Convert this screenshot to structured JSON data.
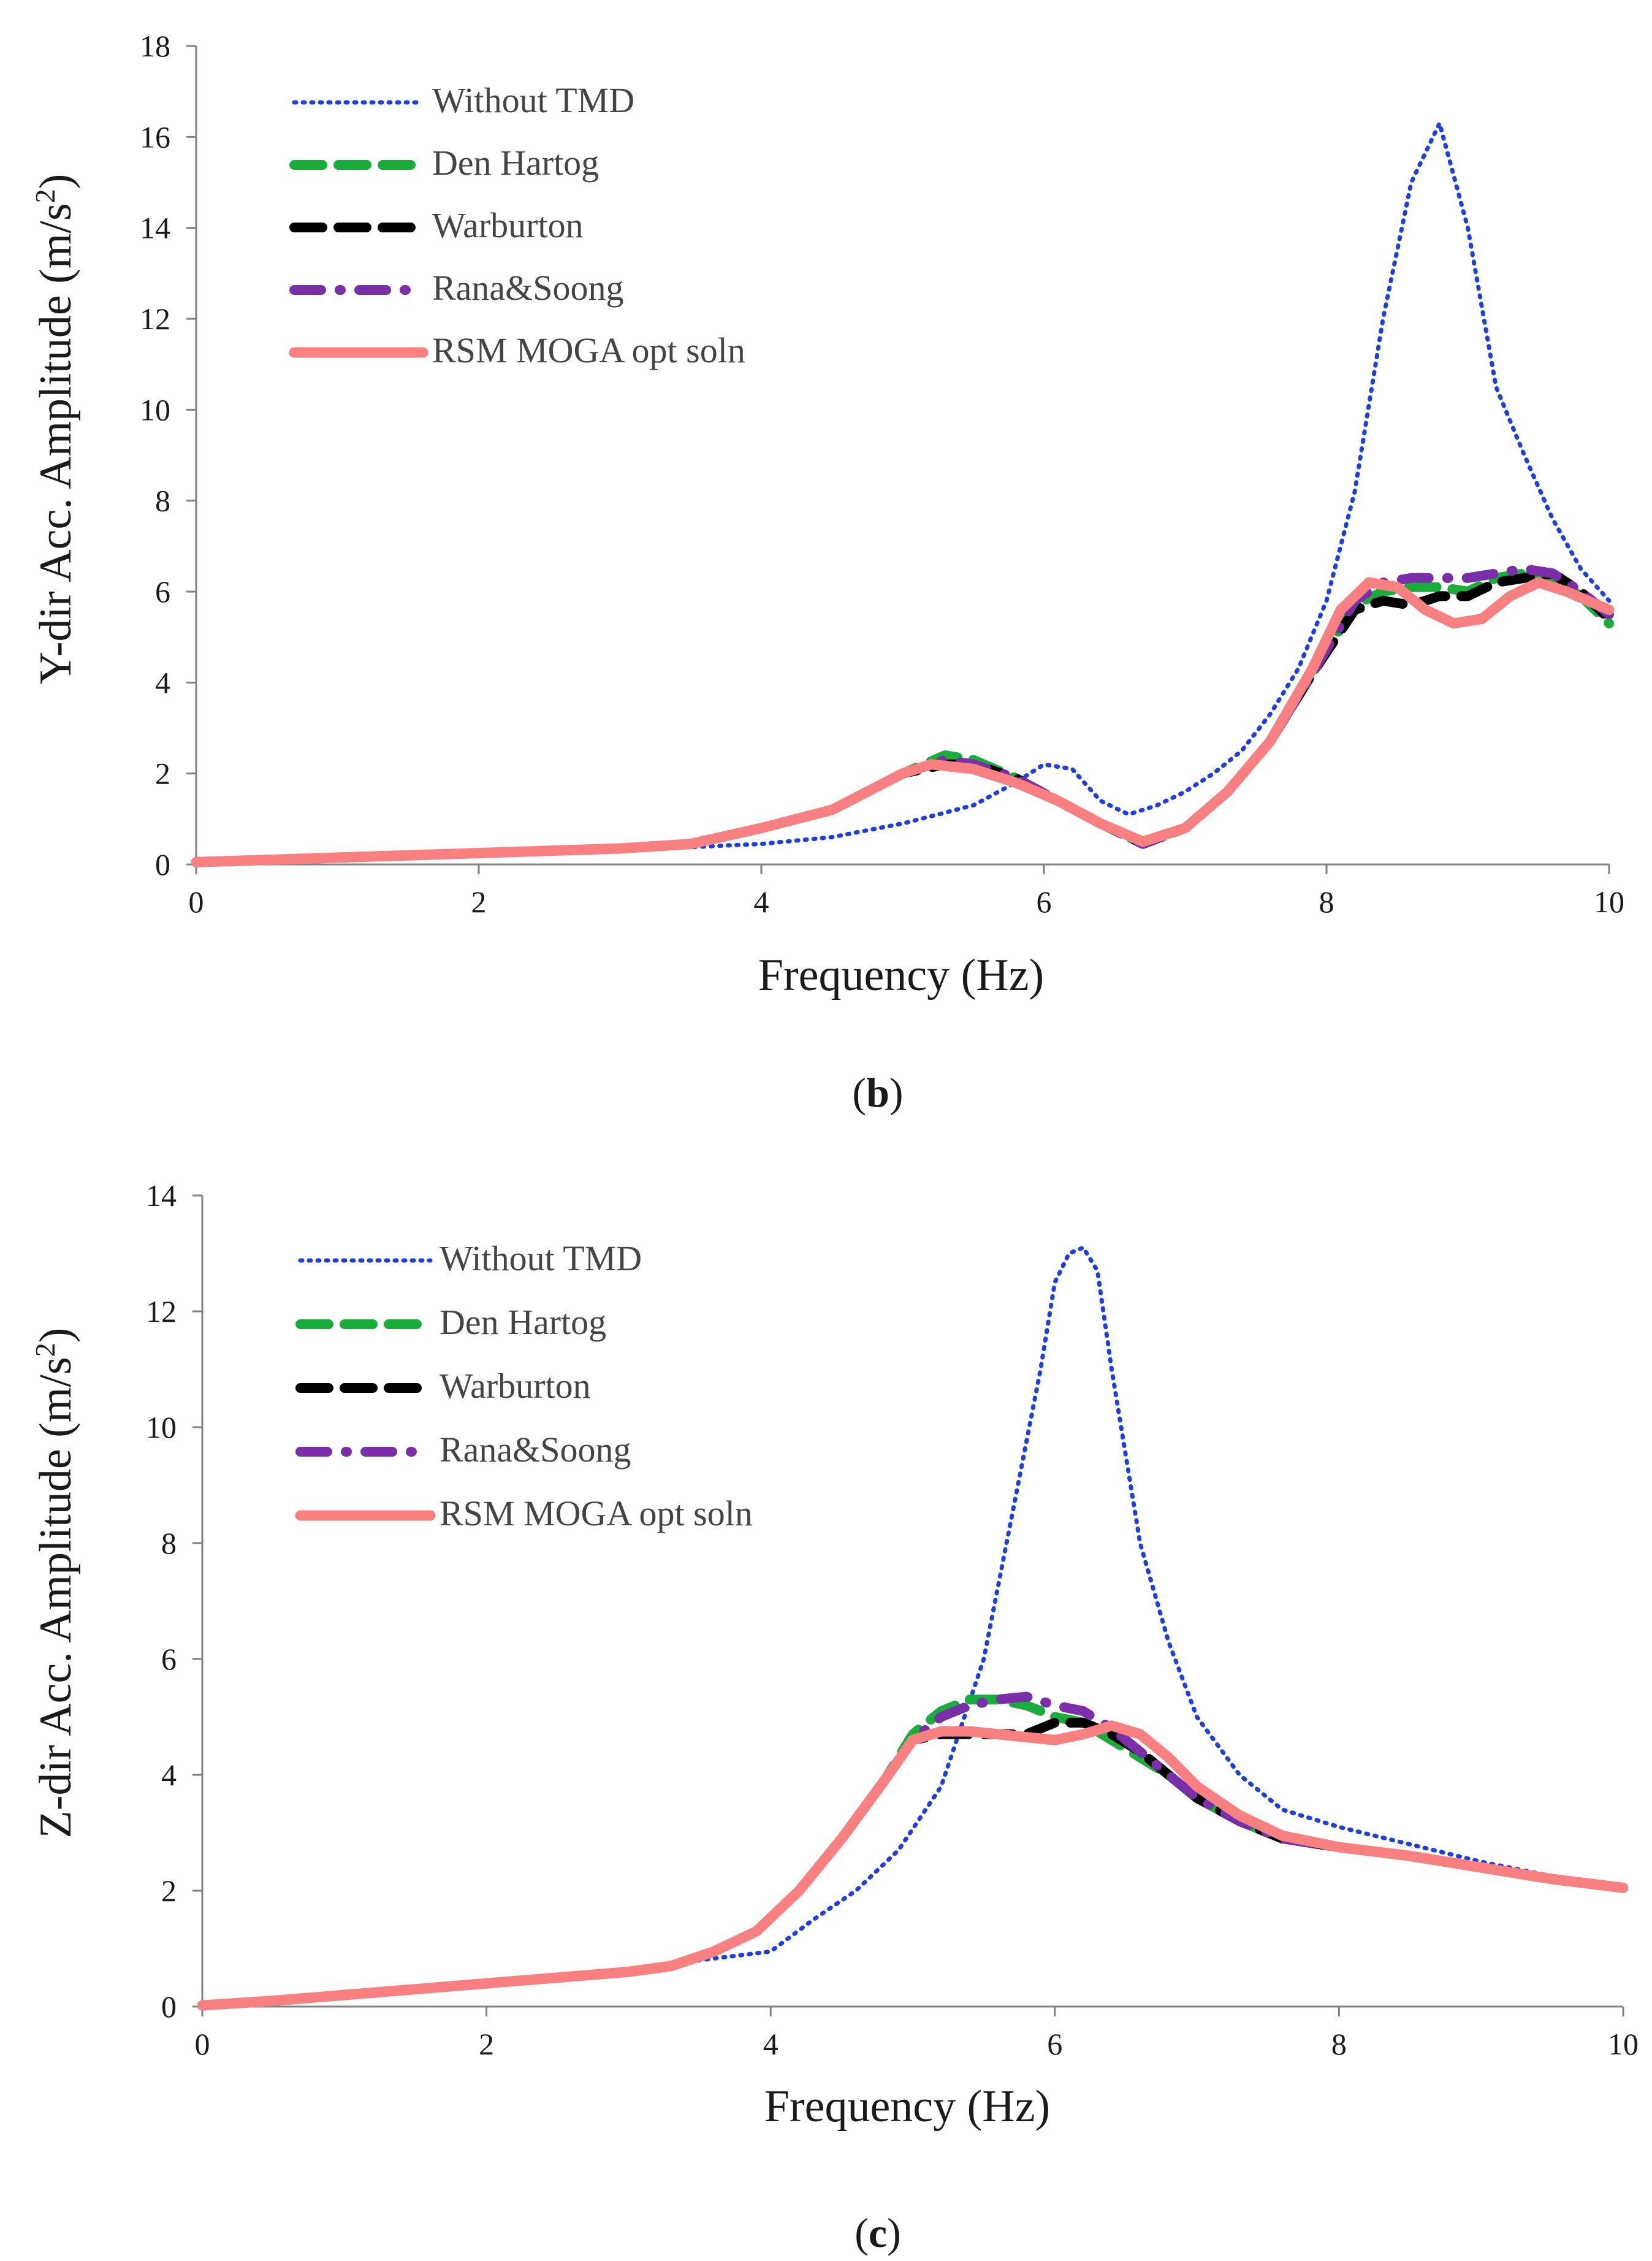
{
  "figure": {
    "panels": [
      {
        "label_open": "(",
        "label_letter": "b",
        "label_close": ")"
      },
      {
        "label_open": "(",
        "label_letter": "c",
        "label_close": ")"
      }
    ]
  },
  "chart_data": [
    {
      "type": "line",
      "title": "",
      "xlabel": "Frequency (Hz)",
      "ylabel_main": "Y-dir Acc. Amplitude (m/s",
      "ylabel_sup": "2",
      "ylabel_end": ")",
      "xlim": [
        0,
        10
      ],
      "ylim": [
        0,
        18
      ],
      "xticks": [
        0,
        2,
        4,
        6,
        8,
        10
      ],
      "yticks": [
        0,
        2,
        4,
        6,
        8,
        10,
        12,
        14,
        16,
        18
      ],
      "grid": false,
      "legend_position": "top-left",
      "series": [
        {
          "name": "Without TMD",
          "color": "#1f3fdc",
          "style": "dotted",
          "x": [
            0,
            0.5,
            1,
            1.5,
            2,
            2.5,
            3,
            3.5,
            4,
            4.5,
            5,
            5.5,
            5.8,
            6.0,
            6.2,
            6.4,
            6.6,
            6.8,
            7.0,
            7.2,
            7.4,
            7.6,
            7.8,
            8.0,
            8.2,
            8.4,
            8.6,
            8.8,
            9.0,
            9.2,
            9.4,
            9.6,
            9.8,
            10.0
          ],
          "y": [
            0.05,
            0.1,
            0.15,
            0.2,
            0.25,
            0.3,
            0.35,
            0.38,
            0.45,
            0.6,
            0.9,
            1.3,
            1.8,
            2.2,
            2.1,
            1.4,
            1.1,
            1.3,
            1.6,
            2.0,
            2.5,
            3.3,
            4.3,
            5.8,
            8.2,
            12.0,
            15.0,
            16.3,
            14.0,
            10.5,
            9.0,
            7.6,
            6.5,
            5.8
          ]
        },
        {
          "name": "Den Hartog",
          "color": "#1aad3c",
          "style": "dashed",
          "x": [
            0,
            0.5,
            1,
            1.5,
            2,
            2.5,
            3,
            3.5,
            4,
            4.5,
            5,
            5.3,
            5.5,
            5.8,
            6.1,
            6.4,
            6.7,
            7.0,
            7.3,
            7.6,
            7.9,
            8.2,
            8.4,
            8.6,
            8.8,
            9.0,
            9.2,
            9.4,
            9.6,
            9.8,
            10.0
          ],
          "y": [
            0.05,
            0.1,
            0.15,
            0.2,
            0.25,
            0.3,
            0.35,
            0.45,
            0.8,
            1.2,
            2.0,
            2.4,
            2.3,
            1.9,
            1.4,
            0.9,
            0.45,
            0.8,
            1.6,
            2.7,
            4.2,
            5.7,
            6.0,
            6.1,
            6.1,
            6.0,
            6.3,
            6.4,
            6.3,
            5.9,
            5.3
          ]
        },
        {
          "name": "Warburton",
          "color": "#000000",
          "style": "dashed",
          "x": [
            0,
            0.5,
            1,
            1.5,
            2,
            2.5,
            3,
            3.5,
            4,
            4.5,
            5,
            5.3,
            5.5,
            5.8,
            6.1,
            6.4,
            6.7,
            7.0,
            7.3,
            7.6,
            7.9,
            8.2,
            8.4,
            8.6,
            8.8,
            9.0,
            9.2,
            9.4,
            9.6,
            9.8,
            10.0
          ],
          "y": [
            0.05,
            0.1,
            0.15,
            0.2,
            0.25,
            0.3,
            0.35,
            0.45,
            0.8,
            1.2,
            2.0,
            2.2,
            2.2,
            1.9,
            1.4,
            0.9,
            0.45,
            0.8,
            1.6,
            2.7,
            4.2,
            5.6,
            5.8,
            5.7,
            5.9,
            5.9,
            6.2,
            6.3,
            6.4,
            6.0,
            5.4
          ]
        },
        {
          "name": "Rana&Soong",
          "color": "#7a2fa8",
          "style": "dash-dot",
          "x": [
            0,
            0.5,
            1,
            1.5,
            2,
            2.5,
            3,
            3.5,
            4,
            4.5,
            5,
            5.3,
            5.5,
            5.8,
            6.1,
            6.4,
            6.7,
            7.0,
            7.3,
            7.6,
            7.9,
            8.2,
            8.4,
            8.6,
            8.8,
            9.0,
            9.2,
            9.4,
            9.6,
            9.8,
            10.0
          ],
          "y": [
            0.05,
            0.1,
            0.15,
            0.2,
            0.25,
            0.3,
            0.35,
            0.45,
            0.8,
            1.2,
            2.0,
            2.3,
            2.2,
            1.9,
            1.4,
            0.9,
            0.45,
            0.8,
            1.6,
            2.7,
            4.2,
            5.8,
            6.2,
            6.3,
            6.3,
            6.3,
            6.4,
            6.5,
            6.4,
            6.0,
            5.5
          ]
        },
        {
          "name": "RSM MOGA opt soln",
          "color": "#f88080",
          "style": "solid",
          "x": [
            0,
            0.5,
            1,
            1.5,
            2,
            2.5,
            3,
            3.5,
            4,
            4.5,
            5,
            5.2,
            5.5,
            5.8,
            6.1,
            6.4,
            6.7,
            7.0,
            7.3,
            7.6,
            7.9,
            8.1,
            8.3,
            8.5,
            8.7,
            8.9,
            9.1,
            9.3,
            9.5,
            9.7,
            10.0
          ],
          "y": [
            0.05,
            0.1,
            0.15,
            0.2,
            0.25,
            0.3,
            0.35,
            0.45,
            0.8,
            1.2,
            2.0,
            2.2,
            2.1,
            1.8,
            1.4,
            0.9,
            0.5,
            0.8,
            1.6,
            2.7,
            4.3,
            5.6,
            6.2,
            6.1,
            5.6,
            5.3,
            5.4,
            5.9,
            6.2,
            6.0,
            5.6
          ]
        }
      ]
    },
    {
      "type": "line",
      "title": "",
      "xlabel": "Frequency (Hz)",
      "ylabel_main": "Z-dir Acc. Amplitude (m/s",
      "ylabel_sup": "2",
      "ylabel_end": ")",
      "xlim": [
        0,
        10
      ],
      "ylim": [
        0,
        14
      ],
      "xticks": [
        0,
        2,
        4,
        6,
        8,
        10
      ],
      "yticks": [
        0,
        2,
        4,
        6,
        8,
        10,
        12,
        14
      ],
      "grid": false,
      "legend_position": "top-left",
      "series": [
        {
          "name": "Without TMD",
          "color": "#1f3fdc",
          "style": "dotted",
          "x": [
            0,
            0.5,
            1,
            1.5,
            2,
            2.5,
            3,
            3.5,
            4,
            4.3,
            4.6,
            4.9,
            5.2,
            5.5,
            5.7,
            5.9,
            6.0,
            6.1,
            6.2,
            6.3,
            6.4,
            6.6,
            6.8,
            7.0,
            7.3,
            7.6,
            8.0,
            8.5,
            9.0,
            9.5,
            10.0
          ],
          "y": [
            0.02,
            0.1,
            0.2,
            0.3,
            0.4,
            0.5,
            0.6,
            0.8,
            0.95,
            1.5,
            2.0,
            2.7,
            3.8,
            6.0,
            8.5,
            11.0,
            12.5,
            13.0,
            13.1,
            12.7,
            11.0,
            8.0,
            6.3,
            5.0,
            4.0,
            3.4,
            3.1,
            2.8,
            2.5,
            2.25,
            2.1
          ]
        },
        {
          "name": "Den Hartog",
          "color": "#1aad3c",
          "style": "dashed",
          "x": [
            0,
            0.5,
            1,
            1.5,
            2,
            2.5,
            3,
            3.3,
            3.6,
            3.9,
            4.2,
            4.5,
            4.8,
            5.0,
            5.2,
            5.4,
            5.6,
            5.8,
            6.0,
            6.2,
            6.4,
            6.6,
            6.8,
            7.0,
            7.3,
            7.6,
            8.0,
            8.5,
            9.0,
            9.5,
            10.0
          ],
          "y": [
            0.02,
            0.1,
            0.2,
            0.3,
            0.4,
            0.5,
            0.6,
            0.7,
            0.95,
            1.3,
            2.0,
            2.9,
            3.9,
            4.7,
            5.1,
            5.3,
            5.3,
            5.2,
            5.0,
            4.9,
            4.6,
            4.3,
            4.0,
            3.6,
            3.2,
            2.9,
            2.75,
            2.6,
            2.4,
            2.2,
            2.05
          ]
        },
        {
          "name": "Warburton",
          "color": "#000000",
          "style": "dashed",
          "x": [
            0,
            0.5,
            1,
            1.5,
            2,
            2.5,
            3,
            3.3,
            3.6,
            3.9,
            4.2,
            4.5,
            4.8,
            5.0,
            5.2,
            5.4,
            5.6,
            5.8,
            6.0,
            6.2,
            6.4,
            6.6,
            6.8,
            7.0,
            7.3,
            7.6,
            8.0,
            8.5,
            9.0,
            9.5,
            10.0
          ],
          "y": [
            0.02,
            0.1,
            0.2,
            0.3,
            0.4,
            0.5,
            0.6,
            0.7,
            0.95,
            1.3,
            2.0,
            2.9,
            3.9,
            4.6,
            4.7,
            4.7,
            4.7,
            4.7,
            4.9,
            4.9,
            4.7,
            4.4,
            4.0,
            3.6,
            3.2,
            2.9,
            2.75,
            2.6,
            2.4,
            2.2,
            2.05
          ]
        },
        {
          "name": "Rana&Soong",
          "color": "#7a2fa8",
          "style": "dash-dot",
          "x": [
            0,
            0.5,
            1,
            1.5,
            2,
            2.5,
            3,
            3.3,
            3.6,
            3.9,
            4.2,
            4.5,
            4.8,
            5.0,
            5.2,
            5.4,
            5.6,
            5.8,
            6.0,
            6.2,
            6.4,
            6.6,
            6.8,
            7.0,
            7.3,
            7.6,
            8.0,
            8.5,
            9.0,
            9.5,
            10.0
          ],
          "y": [
            0.02,
            0.1,
            0.2,
            0.3,
            0.4,
            0.5,
            0.6,
            0.7,
            0.95,
            1.3,
            2.0,
            2.9,
            3.9,
            4.6,
            5.0,
            5.2,
            5.3,
            5.35,
            5.2,
            5.1,
            4.8,
            4.4,
            4.0,
            3.6,
            3.2,
            2.9,
            2.75,
            2.6,
            2.4,
            2.2,
            2.05
          ]
        },
        {
          "name": "RSM MOGA opt soln",
          "color": "#f88080",
          "style": "solid",
          "x": [
            0,
            0.5,
            1,
            1.5,
            2,
            2.5,
            3,
            3.3,
            3.6,
            3.9,
            4.2,
            4.5,
            4.8,
            5.0,
            5.2,
            5.4,
            5.6,
            5.8,
            6.0,
            6.2,
            6.4,
            6.6,
            6.8,
            7.0,
            7.3,
            7.6,
            8.0,
            8.5,
            9.0,
            9.5,
            10.0
          ],
          "y": [
            0.02,
            0.1,
            0.2,
            0.3,
            0.4,
            0.5,
            0.6,
            0.7,
            0.95,
            1.3,
            2.0,
            2.9,
            3.9,
            4.6,
            4.75,
            4.75,
            4.7,
            4.65,
            4.6,
            4.7,
            4.85,
            4.7,
            4.3,
            3.8,
            3.3,
            2.95,
            2.75,
            2.6,
            2.4,
            2.2,
            2.05
          ]
        }
      ]
    }
  ]
}
